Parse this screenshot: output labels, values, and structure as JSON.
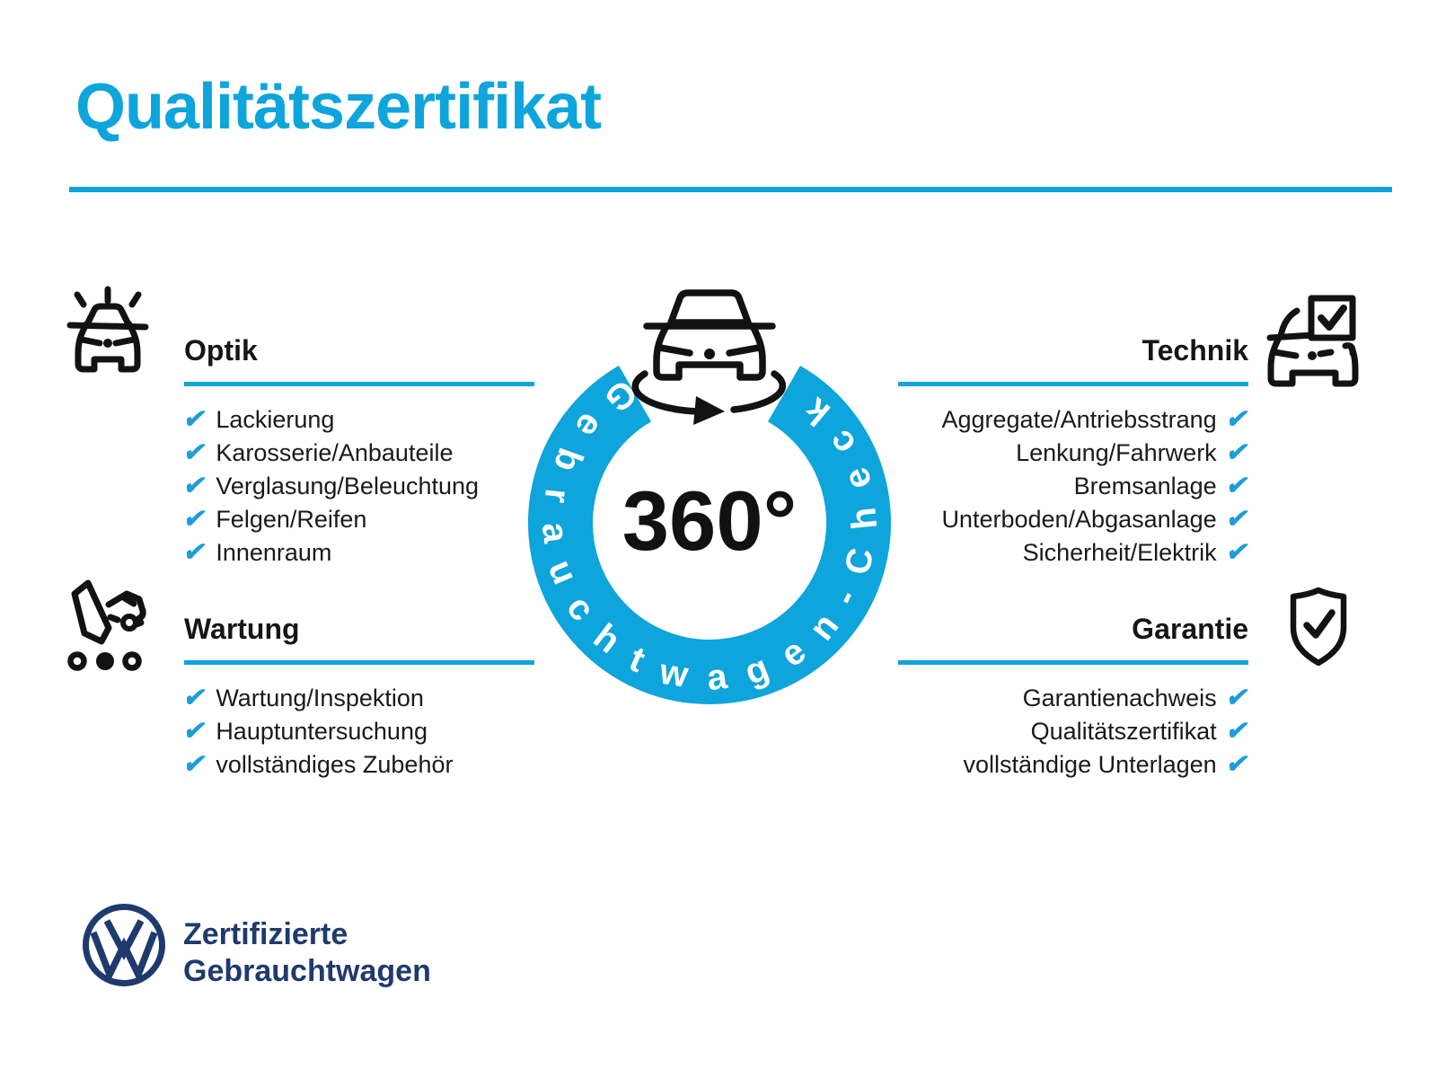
{
  "page": {
    "title": "Qualitätszertifikat"
  },
  "colors": {
    "accent_blue": "#0ea4dc",
    "check_blue": "#1d9dd9",
    "navy": "#1f3a6d",
    "ink": "#161616"
  },
  "check_glyph": "✔",
  "center_badge": {
    "degrees": "360°",
    "ring_text": "Gebrauchtwagen-Check",
    "icon": "car-front-rotate-icon"
  },
  "sections": {
    "optik": {
      "label": "Optik",
      "icon": "car-shine-icon",
      "items": [
        "Lackierung",
        "Karosserie/Anbauteile",
        "Verglasung/Beleuchtung",
        "Felgen/Reifen",
        "Innenraum"
      ]
    },
    "technik": {
      "label": "Technik",
      "icon": "car-checkbox-icon",
      "items": [
        "Aggregate/Antriebsstrang",
        "Lenkung/Fahrwerk",
        "Bremsanlage",
        "Unterboden/Abgasanlage",
        "Sicherheit/Elektrik"
      ]
    },
    "wartung": {
      "label": "Wartung",
      "icon": "service-checklist-icon",
      "items": [
        "Wartung/Inspektion",
        "Hauptuntersuchung",
        "vollständiges Zubehör"
      ]
    },
    "garantie": {
      "label": "Garantie",
      "icon": "shield-check-icon",
      "items": [
        "Garantienachweis",
        "Qualitätszertifikat",
        "vollständige Unterlagen"
      ]
    }
  },
  "footer": {
    "logo": "vw-logo",
    "line1": "Zertifizierte",
    "line2": "Gebrauchtwagen"
  }
}
